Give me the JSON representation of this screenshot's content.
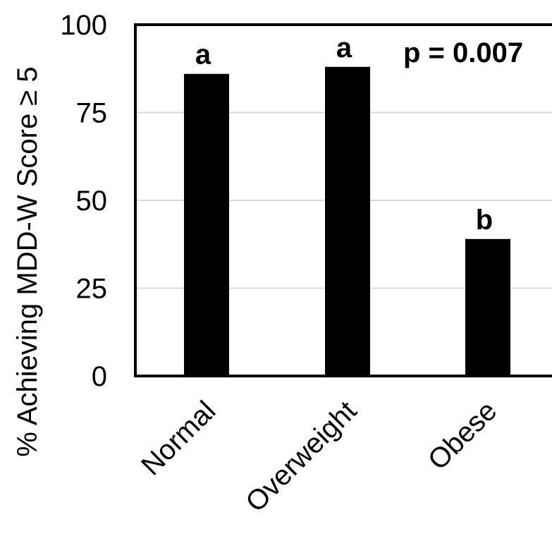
{
  "chart_data": {
    "type": "bar",
    "categories": [
      "Normal",
      "Overweight",
      "Obese"
    ],
    "values": [
      86,
      88,
      39
    ],
    "significance_letters": [
      "a",
      "a",
      "b"
    ],
    "annotation": "p = 0.007",
    "title": "",
    "xlabel": "",
    "ylabel": "% Achieving MDD-W Score ≥ 5",
    "ylim": [
      0,
      100
    ],
    "yticks": [
      0,
      25,
      50,
      75,
      100
    ],
    "grid": true,
    "bar_color": "#000000",
    "grid_color": "#d9d9d9"
  }
}
